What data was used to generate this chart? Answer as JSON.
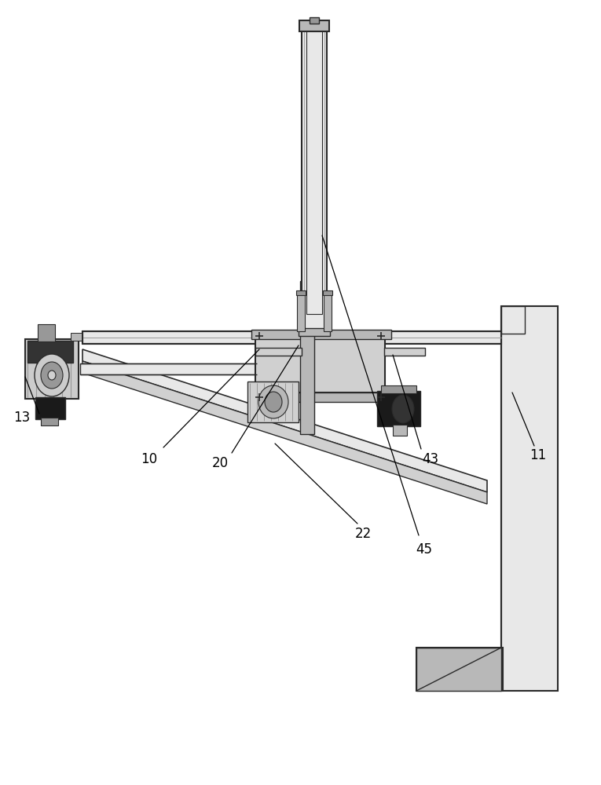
{
  "bg_color": "#ffffff",
  "lc": "#2a2a2a",
  "lc2": "#444444",
  "gray1": "#e8e8e8",
  "gray2": "#d0d0d0",
  "gray3": "#b8b8b8",
  "gray4": "#989898",
  "gray5": "#cccccc",
  "dark1": "#1a1a1a",
  "dark2": "#333333",
  "dark3": "#555555",
  "figsize": [
    7.65,
    10.0
  ],
  "dpi": 100
}
